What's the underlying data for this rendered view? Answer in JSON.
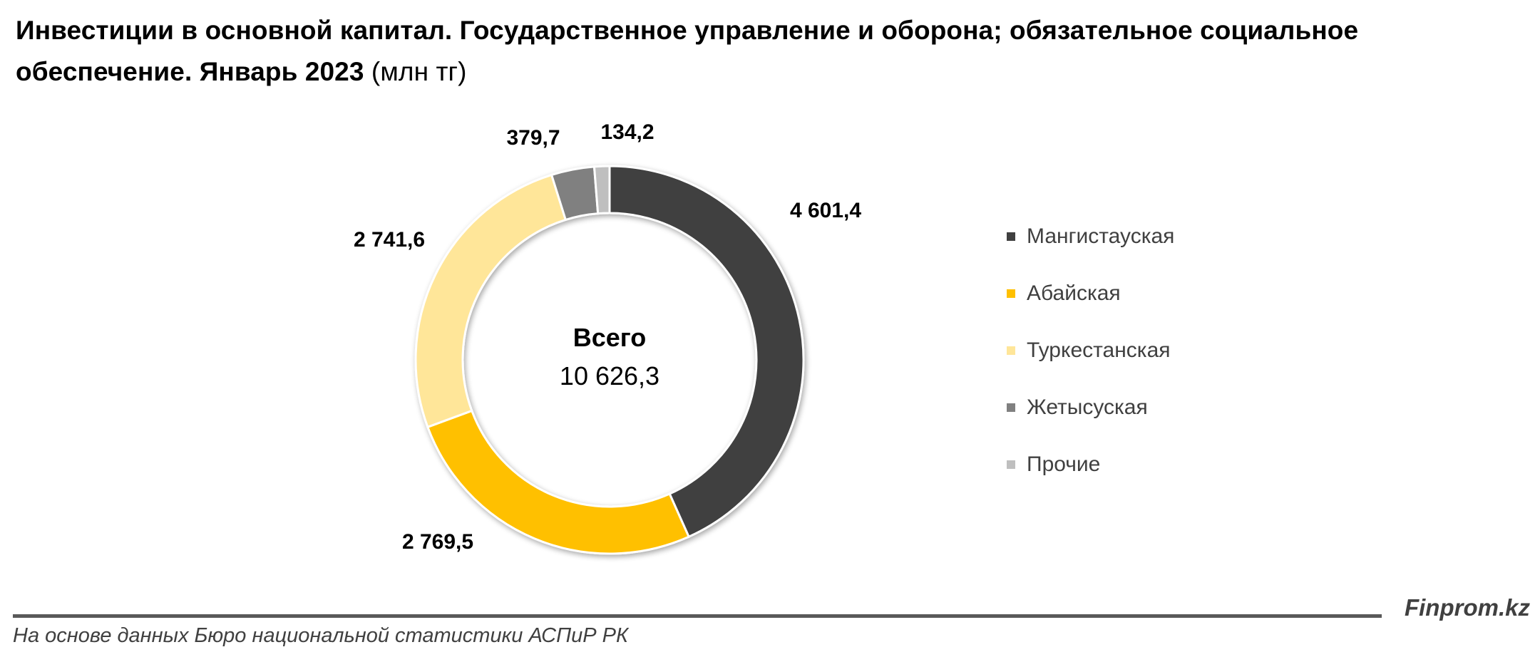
{
  "title": {
    "main": "Инвестиции в основной капитал. Государственное управление и оборона; обязательное социальное обеспечение. Январь 2023",
    "unit": "(млн тг)"
  },
  "center": {
    "label": "Всего",
    "value": "10 626,3"
  },
  "chart_data": {
    "type": "pie",
    "variant": "donut",
    "title": "Инвестиции в основной капитал. Государственное управление и оборона; обязательное социальное обеспечение. Январь 2023 (млн тг)",
    "total": 10626.3,
    "categories": [
      "Мангистауская",
      "Абайская",
      "Туркестанская",
      "Жетысуская",
      "Прочие"
    ],
    "values": [
      4601.4,
      2769.5,
      2741.6,
      379.7,
      134.2
    ],
    "value_labels": [
      "4 601,4",
      "2 769,5",
      "2 741,6",
      "379,7",
      "134,2"
    ],
    "colors": [
      "#404040",
      "#ffc000",
      "#ffe699",
      "#808080",
      "#bfbfbf"
    ],
    "start_angle_deg": 0,
    "direction": "clockwise",
    "legend_position": "right"
  },
  "legend": {
    "items": [
      {
        "label": "Мангистауская",
        "color": "#404040"
      },
      {
        "label": "Абайская",
        "color": "#ffc000"
      },
      {
        "label": "Туркестанская",
        "color": "#ffe699"
      },
      {
        "label": "Жетысуская",
        "color": "#808080"
      },
      {
        "label": "Прочие",
        "color": "#bfbfbf"
      }
    ]
  },
  "footer": {
    "brand": "Finprom.kz",
    "source": "На основе данных Бюро национальной статистики АСПиР РК"
  }
}
